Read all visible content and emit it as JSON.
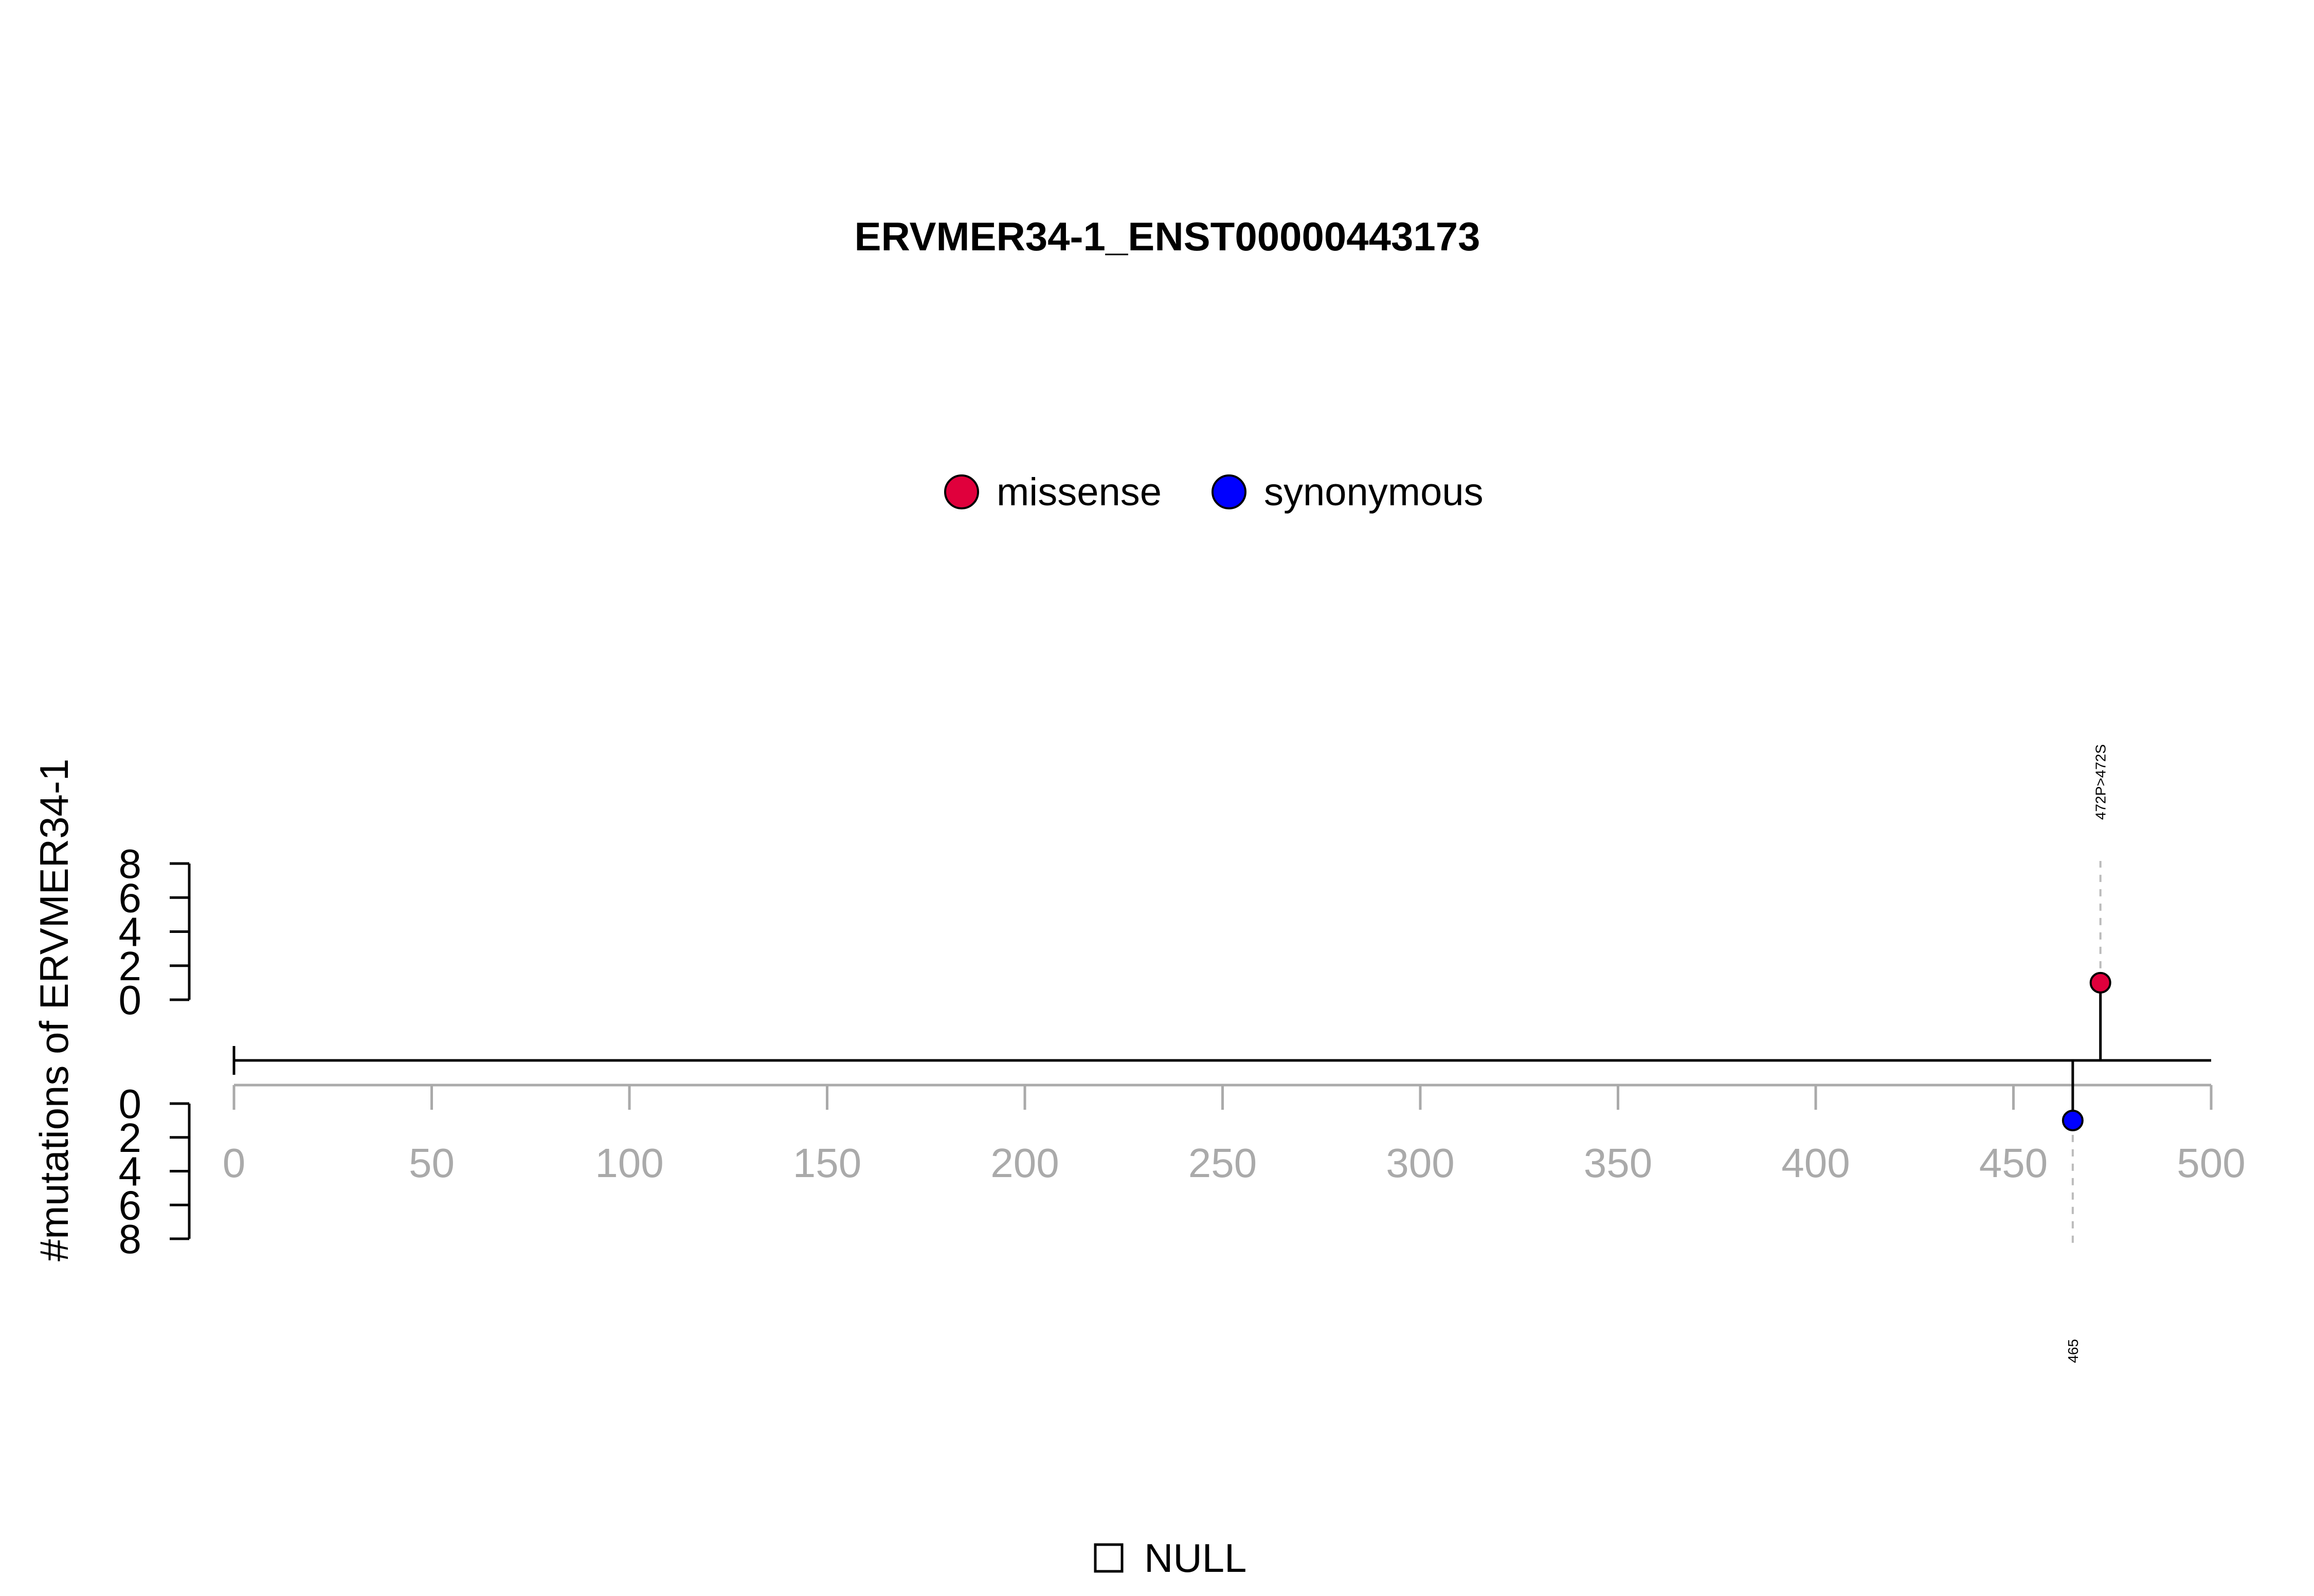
{
  "chart_data": {
    "type": "lollipop",
    "title": "ERVMER34-1_ENST00000443173",
    "ylabel": "#mutations of ERVMER34-1",
    "xlim": [
      0,
      500
    ],
    "x_ticks": [
      0,
      50,
      100,
      150,
      200,
      250,
      300,
      350,
      400,
      450,
      500
    ],
    "upper_ylim": [
      0,
      8
    ],
    "upper_y_ticks": [
      0,
      2,
      4,
      6,
      8
    ],
    "lower_ylim": [
      0,
      8
    ],
    "lower_y_ticks": [
      0,
      2,
      4,
      6,
      8
    ],
    "legend": {
      "placement": "top-center",
      "entries": [
        {
          "label": "missense",
          "color": "#E0003C"
        },
        {
          "label": "synonymous",
          "color": "#0000FF"
        }
      ]
    },
    "domain_legend": {
      "placement": "bottom-center",
      "entries": [
        {
          "label": "NULL"
        }
      ]
    },
    "mutations": [
      {
        "position": 472,
        "count": 1,
        "type": "missense",
        "side": "upper",
        "label": "472P>472S"
      },
      {
        "position": 465,
        "count": 1,
        "type": "synonymous",
        "side": "lower",
        "label": "465"
      }
    ],
    "colors": {
      "axis": "#000000",
      "xaxis": "#aaaaaa",
      "guide": "#bbbbbb"
    }
  }
}
